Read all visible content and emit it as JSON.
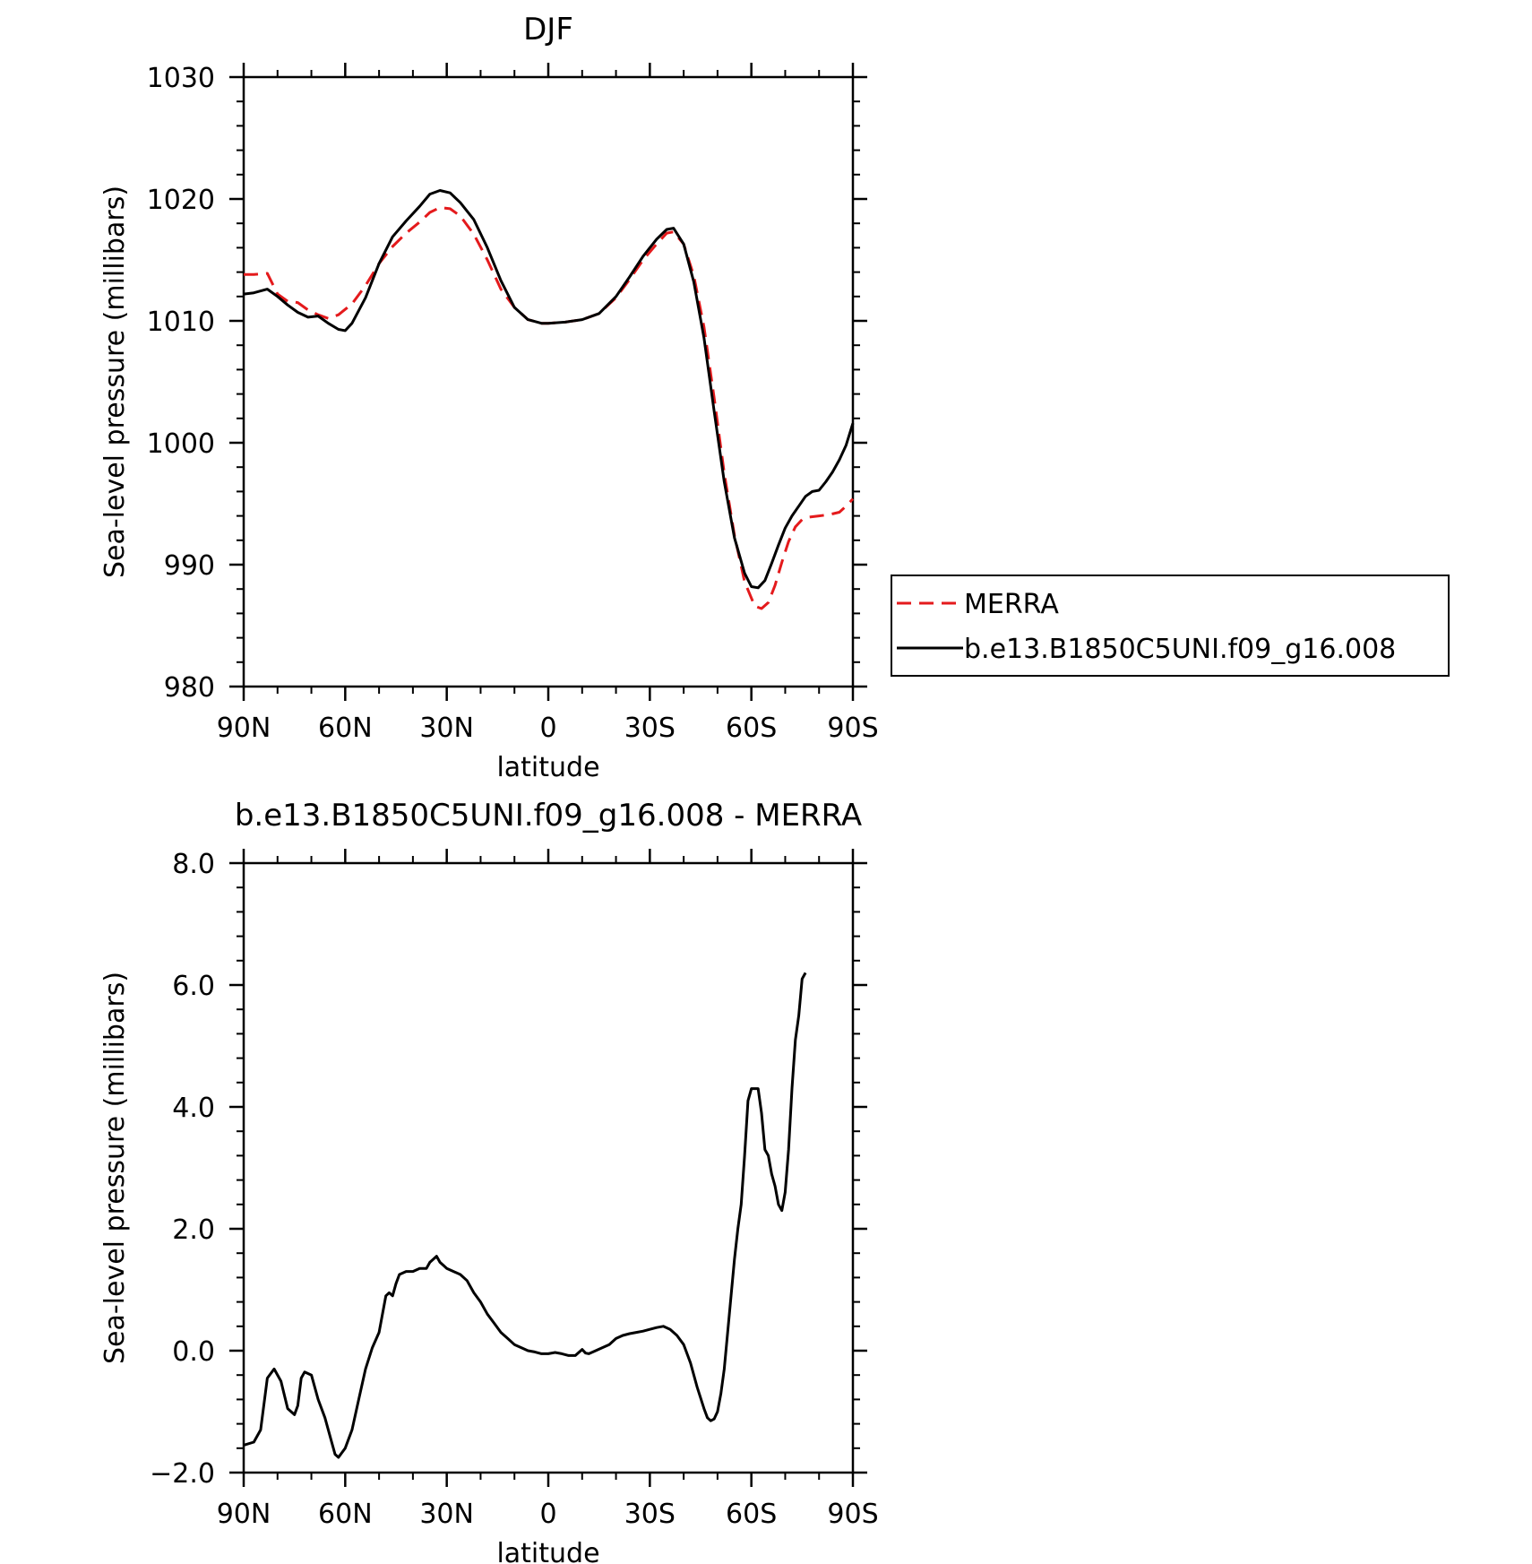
{
  "chart_data": [
    {
      "type": "line",
      "title": "DJF",
      "xlabel": "latitude",
      "ylabel": "Sea-level pressure (millibars)",
      "xlim": [
        90,
        -90
      ],
      "ylim": [
        980,
        1030
      ],
      "x_ticks": [
        {
          "value": 90,
          "label": "90N"
        },
        {
          "value": 60,
          "label": "60N"
        },
        {
          "value": 30,
          "label": "30N"
        },
        {
          "value": 0,
          "label": "0"
        },
        {
          "value": -30,
          "label": "30S"
        },
        {
          "value": -60,
          "label": "60S"
        },
        {
          "value": -90,
          "label": "90S"
        }
      ],
      "y_ticks": [
        {
          "value": 980,
          "label": "980"
        },
        {
          "value": 990,
          "label": "990"
        },
        {
          "value": 1000,
          "label": "1000"
        },
        {
          "value": 1010,
          "label": "1010"
        },
        {
          "value": 1020,
          "label": "1020"
        },
        {
          "value": 1030,
          "label": "1030"
        }
      ],
      "legend": {
        "placement": "right",
        "entries": [
          "MERRA",
          "b.e13.B1850C5UNI.f09_g16.008"
        ]
      },
      "series": [
        {
          "name": "MERRA",
          "color": "#e41a1c",
          "style": "dashed",
          "points": [
            [
              90,
              1013.8
            ],
            [
              87,
              1013.8
            ],
            [
              83,
              1013.9
            ],
            [
              80,
              1012.2
            ],
            [
              77,
              1011.6
            ],
            [
              74,
              1011.5
            ],
            [
              71,
              1010.9
            ],
            [
              68,
              1010.5
            ],
            [
              65,
              1010.2
            ],
            [
              62,
              1010.5
            ],
            [
              58,
              1011.4
            ],
            [
              54,
              1012.9
            ],
            [
              50,
              1014.7
            ],
            [
              46,
              1016.1
            ],
            [
              42,
              1017.2
            ],
            [
              38,
              1018.1
            ],
            [
              35,
              1018.9
            ],
            [
              32,
              1019.3
            ],
            [
              29,
              1019.2
            ],
            [
              26,
              1018.6
            ],
            [
              22,
              1017.1
            ],
            [
              18,
              1015.0
            ],
            [
              14,
              1012.6
            ],
            [
              10,
              1011.1
            ],
            [
              6,
              1010.1
            ],
            [
              2,
              1009.8
            ],
            [
              0,
              1009.8
            ],
            [
              -5,
              1009.9
            ],
            [
              -10,
              1010.1
            ],
            [
              -15,
              1010.6
            ],
            [
              -20,
              1011.9
            ],
            [
              -24,
              1013.4
            ],
            [
              -28,
              1015.0
            ],
            [
              -32,
              1016.3
            ],
            [
              -35,
              1017.2
            ],
            [
              -37,
              1017.3
            ],
            [
              -40,
              1016.3
            ],
            [
              -43,
              1013.7
            ],
            [
              -46,
              1009.5
            ],
            [
              -49,
              1003.7
            ],
            [
              -52,
              997.5
            ],
            [
              -55,
              992.4
            ],
            [
              -58,
              988.6
            ],
            [
              -61,
              986.6
            ],
            [
              -63,
              986.4
            ],
            [
              -65,
              986.9
            ],
            [
              -67,
              988.3
            ],
            [
              -69,
              990.2
            ],
            [
              -71,
              991.9
            ],
            [
              -73,
              993.1
            ],
            [
              -75,
              993.7
            ],
            [
              -77,
              993.9
            ],
            [
              -80,
              994.0
            ],
            [
              -83,
              994.1
            ],
            [
              -86,
              994.3
            ],
            [
              -88,
              994.8
            ],
            [
              -90,
              995.4
            ]
          ]
        },
        {
          "name": "b.e13.B1850C5UNI.f09_g16.008",
          "color": "#000000",
          "style": "solid",
          "points": [
            [
              90,
              1012.2
            ],
            [
              87,
              1012.3
            ],
            [
              83,
              1012.6
            ],
            [
              80,
              1012.0
            ],
            [
              77,
              1011.3
            ],
            [
              74,
              1010.7
            ],
            [
              71,
              1010.3
            ],
            [
              68,
              1010.4
            ],
            [
              65,
              1009.8
            ],
            [
              62,
              1009.3
            ],
            [
              60,
              1009.2
            ],
            [
              58,
              1009.8
            ],
            [
              54,
              1011.9
            ],
            [
              50,
              1014.7
            ],
            [
              46,
              1016.9
            ],
            [
              42,
              1018.2
            ],
            [
              38,
              1019.4
            ],
            [
              35,
              1020.4
            ],
            [
              32,
              1020.7
            ],
            [
              29,
              1020.5
            ],
            [
              26,
              1019.7
            ],
            [
              22,
              1018.3
            ],
            [
              18,
              1016.0
            ],
            [
              14,
              1013.3
            ],
            [
              10,
              1011.1
            ],
            [
              6,
              1010.1
            ],
            [
              2,
              1009.8
            ],
            [
              0,
              1009.8
            ],
            [
              -5,
              1009.9
            ],
            [
              -10,
              1010.1
            ],
            [
              -15,
              1010.6
            ],
            [
              -20,
              1012.0
            ],
            [
              -24,
              1013.6
            ],
            [
              -28,
              1015.3
            ],
            [
              -32,
              1016.7
            ],
            [
              -35,
              1017.5
            ],
            [
              -37,
              1017.6
            ],
            [
              -40,
              1016.3
            ],
            [
              -43,
              1013.2
            ],
            [
              -46,
              1008.6
            ],
            [
              -49,
              1002.6
            ],
            [
              -52,
              996.8
            ],
            [
              -55,
              992.2
            ],
            [
              -58,
              989.3
            ],
            [
              -60,
              988.2
            ],
            [
              -62,
              988.1
            ],
            [
              -64,
              988.7
            ],
            [
              -66,
              990.1
            ],
            [
              -68,
              991.6
            ],
            [
              -70,
              993.0
            ],
            [
              -72,
              994.0
            ],
            [
              -74,
              994.8
            ],
            [
              -76,
              995.6
            ],
            [
              -78,
              996.0
            ],
            [
              -80,
              996.1
            ],
            [
              -82,
              996.8
            ],
            [
              -84,
              997.6
            ],
            [
              -86,
              998.6
            ],
            [
              -88,
              999.8
            ],
            [
              -90,
              1001.6
            ]
          ]
        }
      ]
    },
    {
      "type": "line",
      "title": "b.e13.B1850C5UNI.f09_g16.008 - MERRA",
      "xlabel": "latitude",
      "ylabel": "Sea-level pressure (millibars)",
      "xlim": [
        90,
        -90
      ],
      "ylim": [
        -2.0,
        8.0
      ],
      "x_ticks": [
        {
          "value": 90,
          "label": "90N"
        },
        {
          "value": 60,
          "label": "60N"
        },
        {
          "value": 30,
          "label": "30N"
        },
        {
          "value": 0,
          "label": "0"
        },
        {
          "value": -30,
          "label": "30S"
        },
        {
          "value": -60,
          "label": "60S"
        },
        {
          "value": -90,
          "label": "90S"
        }
      ],
      "y_ticks": [
        {
          "value": -2.0,
          "label": "−2.0"
        },
        {
          "value": 0.0,
          "label": "0.0"
        },
        {
          "value": 2.0,
          "label": "2.0"
        },
        {
          "value": 4.0,
          "label": "4.0"
        },
        {
          "value": 6.0,
          "label": "6.0"
        },
        {
          "value": 8.0,
          "label": "8.0"
        }
      ],
      "series": [
        {
          "color": "#000000",
          "style": "solid",
          "points": [
            [
              90,
              -1.55
            ],
            [
              87,
              -1.5
            ],
            [
              85,
              -1.3
            ],
            [
              83,
              -0.45
            ],
            [
              81,
              -0.3
            ],
            [
              79,
              -0.5
            ],
            [
              77,
              -0.95
            ],
            [
              75,
              -1.05
            ],
            [
              74,
              -0.9
            ],
            [
              73,
              -0.45
            ],
            [
              72,
              -0.35
            ],
            [
              70,
              -0.4
            ],
            [
              68,
              -0.8
            ],
            [
              66,
              -1.1
            ],
            [
              64,
              -1.5
            ],
            [
              63,
              -1.7
            ],
            [
              62,
              -1.75
            ],
            [
              60,
              -1.6
            ],
            [
              58,
              -1.3
            ],
            [
              56,
              -0.8
            ],
            [
              54,
              -0.3
            ],
            [
              52,
              0.05
            ],
            [
              50,
              0.3
            ],
            [
              48,
              0.9
            ],
            [
              47,
              0.95
            ],
            [
              46,
              0.9
            ],
            [
              45,
              1.1
            ],
            [
              44,
              1.25
            ],
            [
              42,
              1.3
            ],
            [
              40,
              1.3
            ],
            [
              38,
              1.35
            ],
            [
              36,
              1.35
            ],
            [
              35,
              1.45
            ],
            [
              34,
              1.5
            ],
            [
              33,
              1.55
            ],
            [
              32,
              1.45
            ],
            [
              31,
              1.4
            ],
            [
              30,
              1.35
            ],
            [
              28,
              1.3
            ],
            [
              26,
              1.25
            ],
            [
              24,
              1.15
            ],
            [
              22,
              0.95
            ],
            [
              20,
              0.8
            ],
            [
              18,
              0.6
            ],
            [
              16,
              0.45
            ],
            [
              14,
              0.3
            ],
            [
              12,
              0.2
            ],
            [
              10,
              0.1
            ],
            [
              8,
              0.05
            ],
            [
              6,
              0.0
            ],
            [
              4,
              -0.02
            ],
            [
              2,
              -0.05
            ],
            [
              0,
              -0.05
            ],
            [
              -2,
              -0.03
            ],
            [
              -4,
              -0.05
            ],
            [
              -6,
              -0.08
            ],
            [
              -8,
              -0.08
            ],
            [
              -10,
              0.02
            ],
            [
              -11,
              -0.04
            ],
            [
              -12,
              -0.05
            ],
            [
              -14,
              0.0
            ],
            [
              -16,
              0.05
            ],
            [
              -18,
              0.1
            ],
            [
              -20,
              0.2
            ],
            [
              -22,
              0.25
            ],
            [
              -24,
              0.28
            ],
            [
              -26,
              0.3
            ],
            [
              -28,
              0.32
            ],
            [
              -30,
              0.35
            ],
            [
              -32,
              0.38
            ],
            [
              -34,
              0.4
            ],
            [
              -36,
              0.35
            ],
            [
              -38,
              0.25
            ],
            [
              -40,
              0.1
            ],
            [
              -42,
              -0.2
            ],
            [
              -44,
              -0.6
            ],
            [
              -46,
              -0.95
            ],
            [
              -47,
              -1.1
            ],
            [
              -48,
              -1.15
            ],
            [
              -49,
              -1.12
            ],
            [
              -50,
              -1.0
            ],
            [
              -51,
              -0.7
            ],
            [
              -52,
              -0.3
            ],
            [
              -53,
              0.3
            ],
            [
              -54,
              0.9
            ],
            [
              -55,
              1.5
            ],
            [
              -56,
              2.0
            ],
            [
              -57,
              2.4
            ],
            [
              -58,
              3.2
            ],
            [
              -59,
              4.1
            ],
            [
              -60,
              4.3
            ],
            [
              -61,
              4.3
            ],
            [
              -62,
              4.3
            ],
            [
              -63,
              3.9
            ],
            [
              -64,
              3.3
            ],
            [
              -65,
              3.2
            ],
            [
              -66,
              2.9
            ],
            [
              -67,
              2.7
            ],
            [
              -68,
              2.4
            ],
            [
              -69,
              2.3
            ],
            [
              -70,
              2.6
            ],
            [
              -71,
              3.3
            ],
            [
              -72,
              4.3
            ],
            [
              -73,
              5.1
            ],
            [
              -74,
              5.5
            ],
            [
              -75,
              6.1
            ],
            [
              -76,
              6.2
            ]
          ]
        }
      ]
    }
  ]
}
